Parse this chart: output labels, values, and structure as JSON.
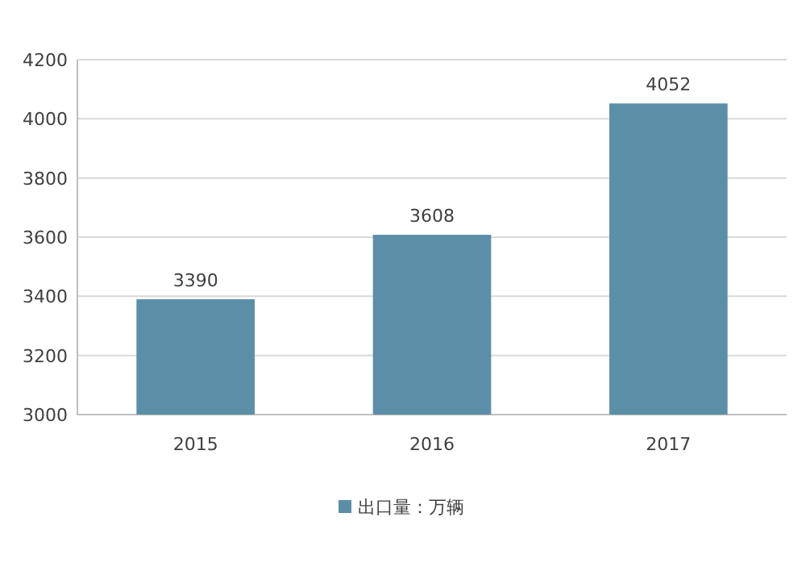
{
  "chart_data": {
    "type": "bar",
    "categories": [
      "2015",
      "2016",
      "2017"
    ],
    "series": [
      {
        "name": "出口量：万辆",
        "color": "#5b8fa8",
        "values": [
          3390,
          3608,
          4052
        ]
      }
    ],
    "ylim": [
      3000,
      4200
    ],
    "yticks": [
      3000,
      3200,
      3400,
      3600,
      3800,
      4000,
      4200
    ],
    "grid": "y",
    "legend": "bottom",
    "data_labels": true
  }
}
